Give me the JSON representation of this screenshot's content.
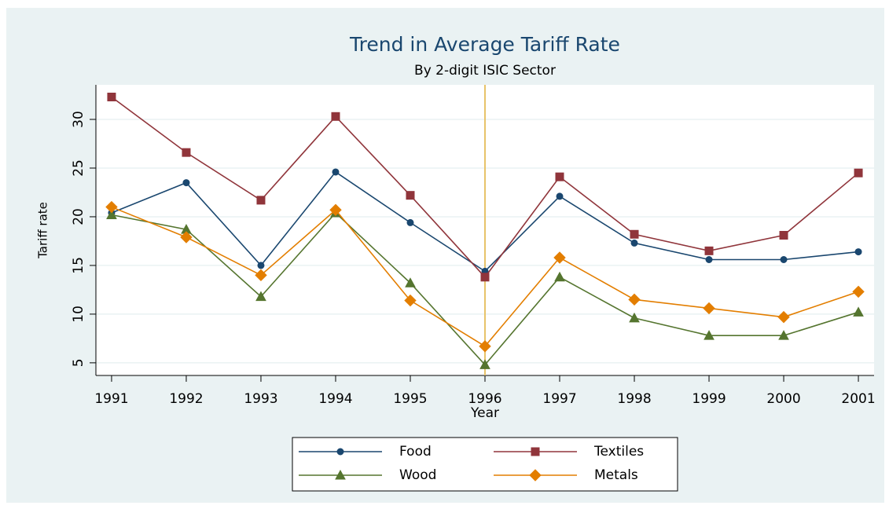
{
  "chart_data": {
    "type": "line",
    "title": "Trend in Average Tariff Rate",
    "subtitle": "By 2-digit  ISIC Sector",
    "xlabel": "Year",
    "ylabel": "Tariff rate",
    "x": [
      1991,
      1992,
      1993,
      1994,
      1995,
      1996,
      1997,
      1998,
      1999,
      2000,
      2001
    ],
    "xlim": [
      1990.79,
      2001.21
    ],
    "xticks": [
      1991,
      1992,
      1993,
      1994,
      1995,
      1996,
      1997,
      1998,
      1999,
      2000,
      2001
    ],
    "ylim": [
      3.7,
      33.55
    ],
    "yticks": [
      5,
      10,
      15,
      20,
      25,
      30
    ],
    "grid": true,
    "xline": 1996,
    "xline_color": "#e8c36a",
    "legend": "bottom",
    "series": [
      {
        "name": "Food",
        "color": "#1a476f",
        "marker": "circle",
        "values": [
          20.4,
          23.5,
          15.0,
          24.6,
          19.4,
          14.4,
          22.1,
          17.3,
          15.6,
          15.6,
          16.4
        ]
      },
      {
        "name": "Textiles",
        "color": "#90353b",
        "marker": "square",
        "values": [
          32.3,
          26.6,
          21.7,
          30.3,
          22.2,
          13.8,
          24.1,
          18.2,
          16.5,
          18.1,
          24.5
        ]
      },
      {
        "name": "Wood",
        "color": "#55752f",
        "marker": "triangle",
        "values": [
          20.2,
          18.7,
          11.8,
          20.4,
          13.2,
          4.8,
          13.8,
          9.6,
          7.8,
          7.8,
          10.2
        ]
      },
      {
        "name": "Metals",
        "color": "#e37e00",
        "marker": "diamond",
        "values": [
          21.0,
          17.9,
          14.0,
          20.7,
          11.4,
          6.7,
          15.8,
          11.5,
          10.6,
          9.7,
          12.3
        ]
      }
    ]
  }
}
